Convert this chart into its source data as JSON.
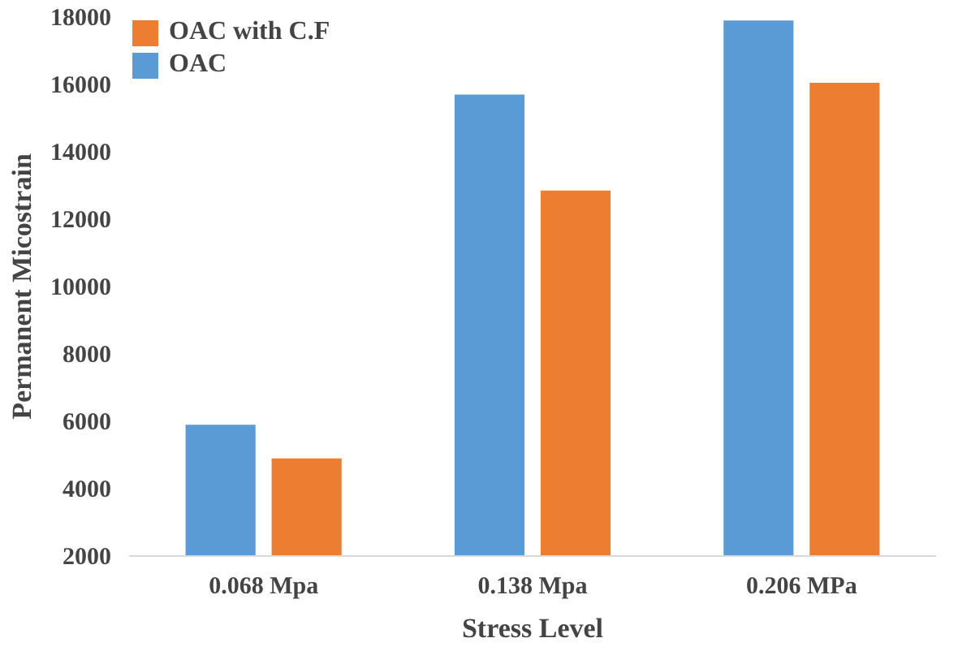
{
  "chart_data": {
    "type": "bar",
    "xlabel": "Stress Level",
    "ylabel": "Permanent Micostrain",
    "categories": [
      "0.068 Mpa",
      "0.138 Mpa",
      "0.206 MPa"
    ],
    "series": [
      {
        "name": "OAC",
        "color": "#5b9bd5",
        "values": [
          5900,
          15700,
          17900
        ]
      },
      {
        "name": "OAC with C.F",
        "color": "#ed7d31",
        "values": [
          4900,
          12850,
          16050
        ]
      }
    ],
    "ylim": [
      2000,
      18000
    ],
    "yticks": [
      2000,
      4000,
      6000,
      8000,
      10000,
      12000,
      14000,
      16000,
      18000
    ],
    "grid": false,
    "legend": "top left"
  }
}
